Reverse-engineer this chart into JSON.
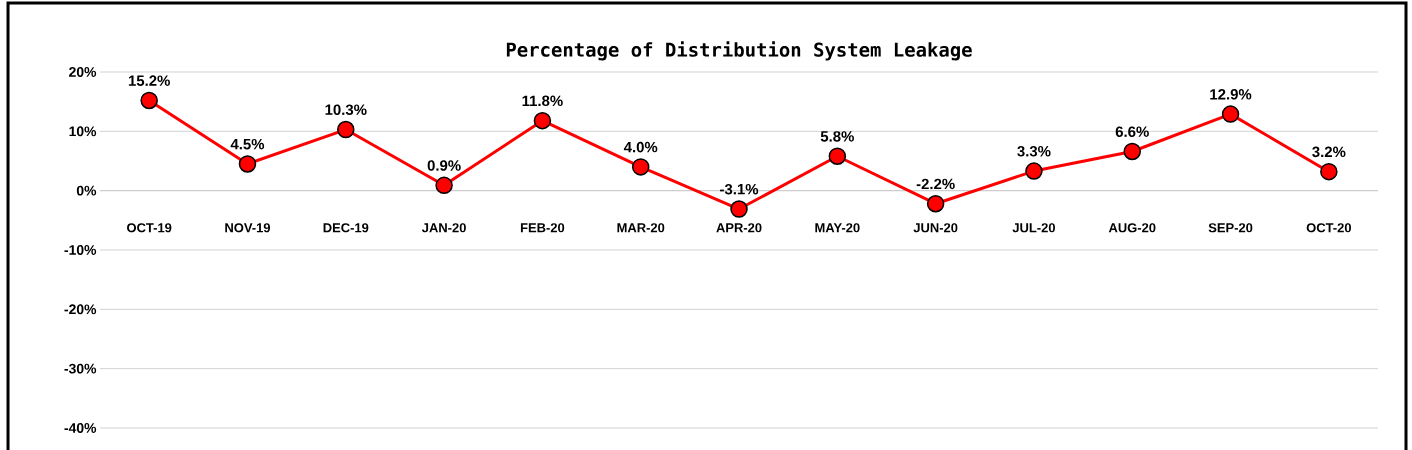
{
  "chart_data": {
    "type": "line",
    "title": "Percentage of Distribution System Leakage",
    "categories": [
      "OCT-19",
      "NOV-19",
      "DEC-19",
      "JAN-20",
      "FEB-20",
      "MAR-20",
      "APR-20",
      "MAY-20",
      "JUN-20",
      "JUL-20",
      "AUG-20",
      "SEP-20",
      "OCT-20"
    ],
    "series": [
      {
        "color": "#ff0000",
        "values": [
          15.2,
          4.5,
          10.3,
          0.9,
          11.8,
          4.0,
          -3.1,
          5.8,
          -2.2,
          3.3,
          6.6,
          12.9,
          3.2
        ],
        "value_labels": [
          "15.2%",
          "4.5%",
          "10.3%",
          "0.9%",
          "11.8%",
          "4.0%",
          "-3.1%",
          "5.8%",
          "-2.2%",
          "3.3%",
          "6.6%",
          "12.9%",
          "3.2%"
        ]
      }
    ],
    "ylim": [
      -40,
      20
    ],
    "yticks": [
      {
        "value": -40,
        "label": "-40%"
      },
      {
        "value": -30,
        "label": "-30%"
      },
      {
        "value": -20,
        "label": "-20%"
      },
      {
        "value": -10,
        "label": "-10%"
      },
      {
        "value": 0,
        "label": "0%"
      },
      {
        "value": 10,
        "label": "10%"
      },
      {
        "value": 20,
        "label": "20%"
      }
    ],
    "grid": "y",
    "marker": "circle",
    "line_style": "solid"
  }
}
